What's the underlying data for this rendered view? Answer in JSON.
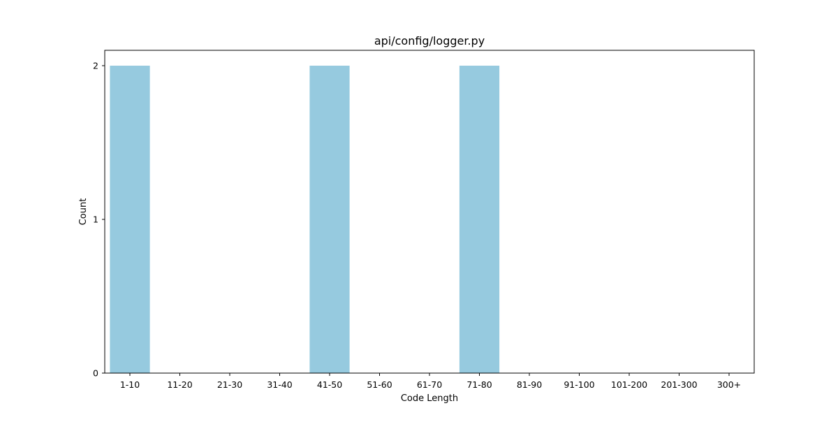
{
  "chart_data": {
    "type": "bar",
    "title": "api/config/logger.py",
    "xlabel": "Code Length",
    "ylabel": "Count",
    "categories": [
      "1-10",
      "11-20",
      "21-30",
      "31-40",
      "41-50",
      "51-60",
      "61-70",
      "71-80",
      "81-90",
      "91-100",
      "101-200",
      "201-300",
      "300+"
    ],
    "values": [
      2,
      0,
      0,
      0,
      2,
      0,
      0,
      2,
      0,
      0,
      0,
      0,
      0
    ],
    "ylim": [
      0,
      2.1
    ],
    "yticks": [
      0,
      1,
      2
    ],
    "grid": false,
    "bar_color": "#96cadf",
    "axis_color": "#000000"
  }
}
